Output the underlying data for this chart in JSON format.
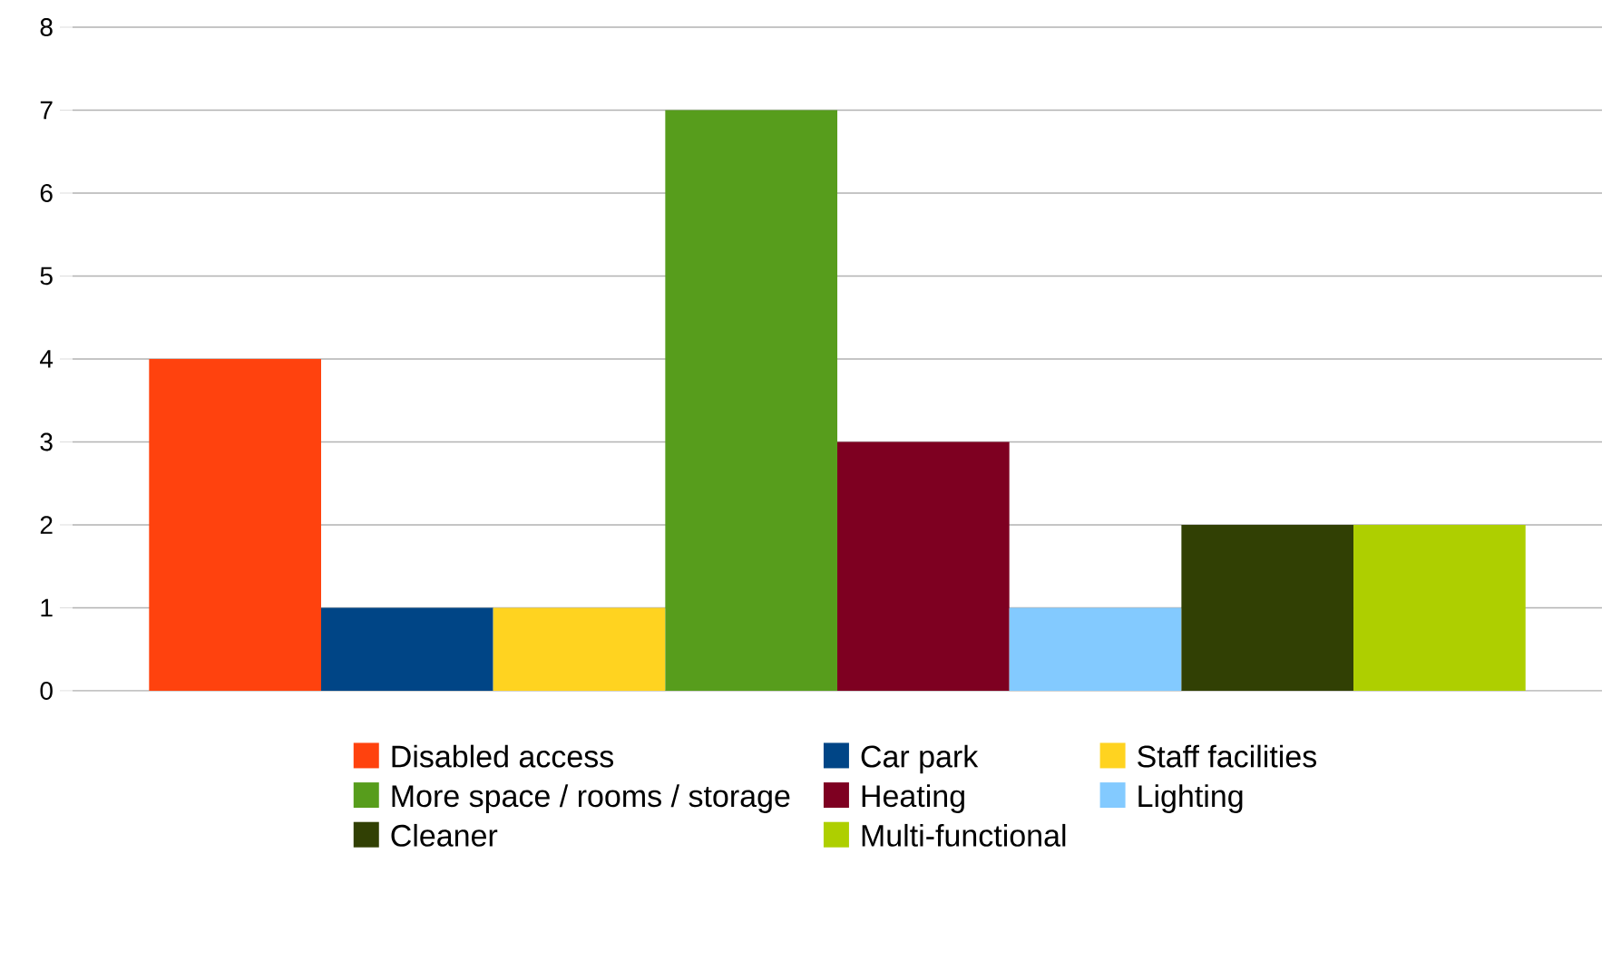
{
  "chart_data": {
    "type": "bar",
    "categories": [
      null
    ],
    "series": [
      {
        "name": "Disabled access",
        "color": "#ff420e",
        "values": [
          4
        ]
      },
      {
        "name": "Car park",
        "color": "#004586",
        "values": [
          1
        ]
      },
      {
        "name": "Staff facilities",
        "color": "#ffd320",
        "values": [
          1
        ]
      },
      {
        "name": "More space / rooms / storage",
        "color": "#579d1c",
        "values": [
          7
        ]
      },
      {
        "name": "Heating",
        "color": "#7e0021",
        "values": [
          3
        ]
      },
      {
        "name": "Lighting",
        "color": "#83caff",
        "values": [
          1
        ]
      },
      {
        "name": "Cleaner",
        "color": "#314004",
        "values": [
          2
        ]
      },
      {
        "name": "Multi-functional",
        "color": "#aecf00",
        "values": [
          2
        ]
      }
    ],
    "ylim": [
      0,
      8
    ],
    "yticks": [
      0,
      1,
      2,
      3,
      4,
      5,
      6,
      7,
      8
    ],
    "grid": "y",
    "legend": "bottom"
  }
}
